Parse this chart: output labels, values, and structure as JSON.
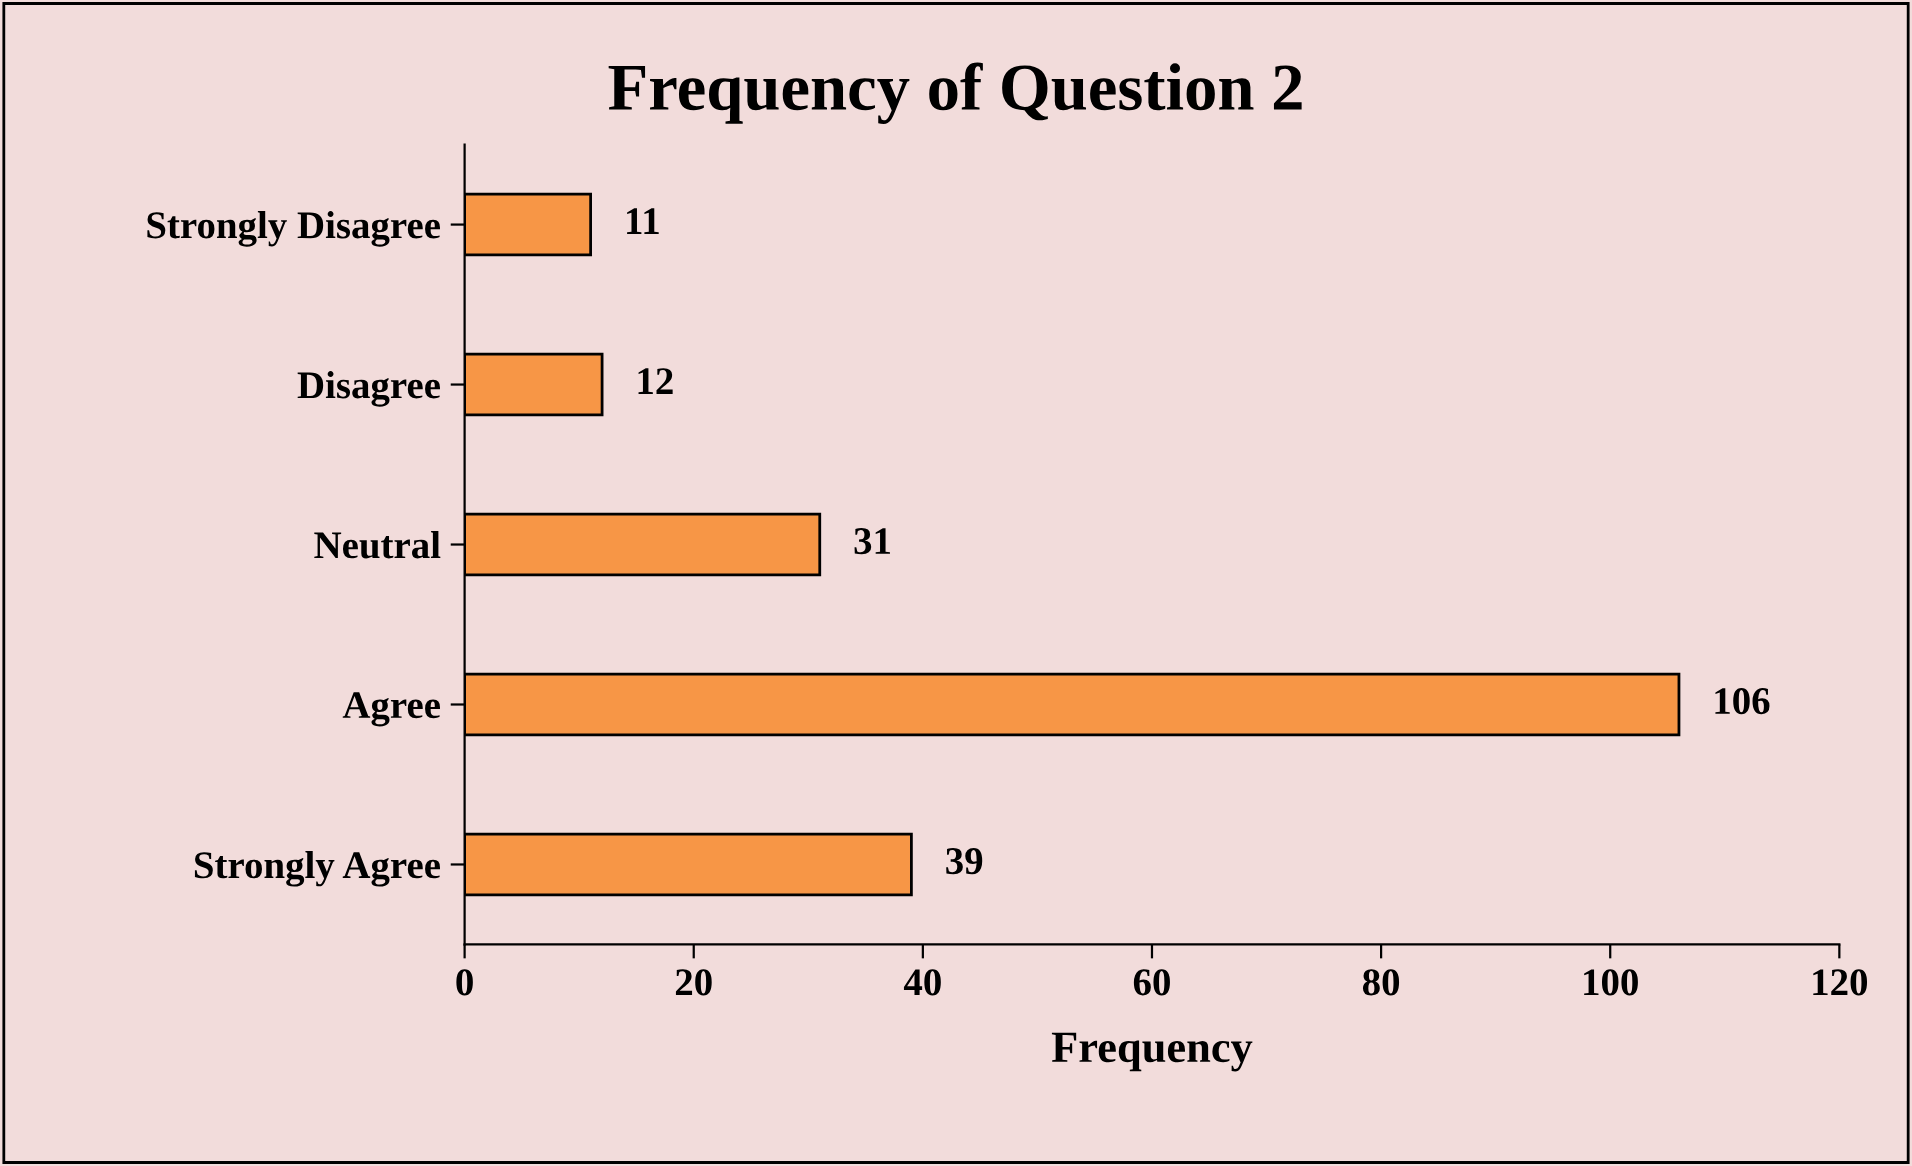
{
  "chart_data": {
    "type": "bar",
    "orientation": "horizontal",
    "title": "Frequency of Question 2",
    "xlabel": "Frequency",
    "categories": [
      "Strongly Disagree",
      "Disagree",
      "Neutral",
      "Agree",
      "Strongly Agree"
    ],
    "values": [
      11,
      12,
      31,
      106,
      39
    ],
    "color": "#f79646",
    "xlim": [
      0,
      120
    ],
    "xticks": [
      0,
      20,
      40,
      60,
      80,
      100,
      120
    ],
    "data_labels": true,
    "grid": false,
    "legend": false
  }
}
